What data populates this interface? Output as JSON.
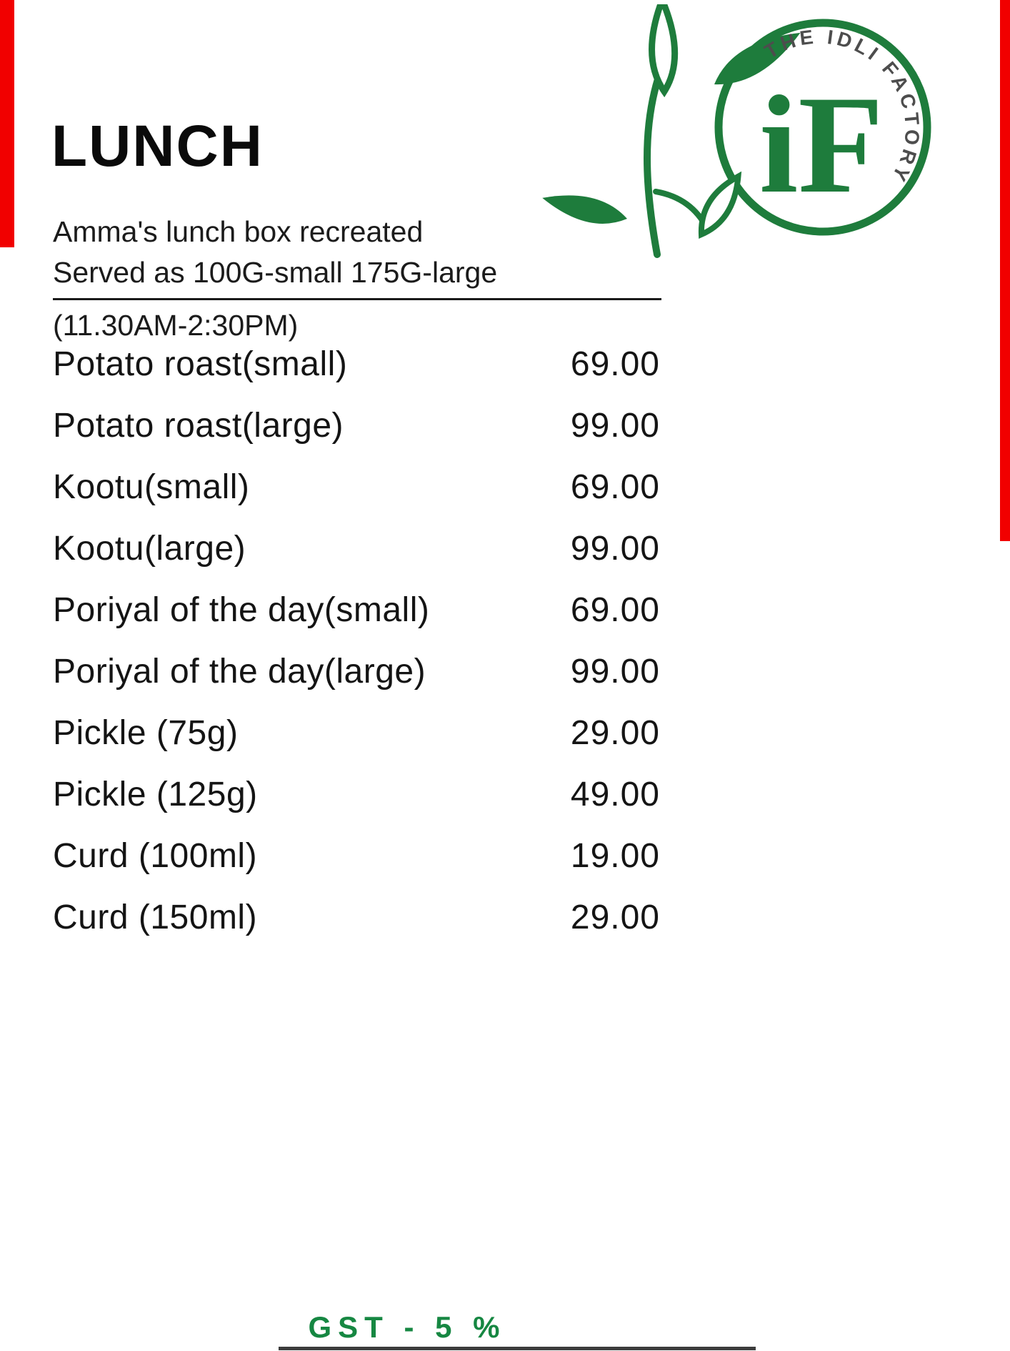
{
  "page": {
    "title": "LUNCH",
    "subtitle_line1": "Amma's lunch box recreated",
    "subtitle_line2": "Served as 100G-small 175G-large",
    "hours": "(11.30AM-2:30PM)",
    "gst_note": "GST - 5 %"
  },
  "logo": {
    "brand_arc_text": "THE IDLI FACTORY",
    "monogram": "iF",
    "green": "#1e7c3c",
    "arc_text_color": "#4d4d4d"
  },
  "colors": {
    "accent_red": "#f10000",
    "gst_green": "#168742",
    "text_black": "#141414"
  },
  "menu": {
    "items": [
      {
        "name": "Potato roast(small)",
        "price": "69.00"
      },
      {
        "name": "Potato roast(large)",
        "price": "99.00"
      },
      {
        "name": "Kootu(small)",
        "price": "69.00"
      },
      {
        "name": "Kootu(large)",
        "price": "99.00"
      },
      {
        "name": "Poriyal of the day(small)",
        "price": "69.00"
      },
      {
        "name": "Poriyal of the day(large)",
        "price": "99.00"
      },
      {
        "name": "Pickle (75g)",
        "price": "29.00"
      },
      {
        "name": "Pickle (125g)",
        "price": "49.00"
      },
      {
        "name": "Curd (100ml)",
        "price": "19.00"
      },
      {
        "name": "Curd (150ml)",
        "price": "29.00"
      }
    ]
  }
}
